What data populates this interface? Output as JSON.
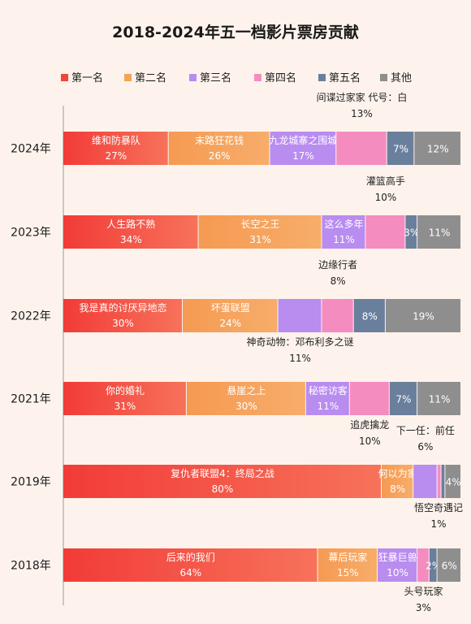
{
  "chart_data": {
    "type": "bar",
    "orientation": "horizontal-stacked-100",
    "title": "2018-2024年五一档影片票房贡献",
    "unit": "%",
    "legend": [
      {
        "name": "第一名",
        "color": "#f0463c"
      },
      {
        "name": "第二名",
        "color": "#f6a257"
      },
      {
        "name": "第三名",
        "color": "#b98cf0"
      },
      {
        "name": "第四名",
        "color": "#f48cc0"
      },
      {
        "name": "第五名",
        "color": "#6a7f9c"
      },
      {
        "name": "其他",
        "color": "#8e8e8e"
      }
    ],
    "legend_position": "top",
    "grid": false,
    "rows": [
      {
        "year": "2024年",
        "segments": [
          {
            "rank": "第一名",
            "film": "维和防暴队",
            "value": 27,
            "label": "27%"
          },
          {
            "rank": "第二名",
            "film": "末路狂花钱",
            "value": 26,
            "label": "26%"
          },
          {
            "rank": "第三名",
            "film": "九龙城寨之围城",
            "value": 17,
            "label": "17%"
          },
          {
            "rank": "第四名",
            "film": "间谍过家家 代号：白",
            "value": 13,
            "label": "13%"
          },
          {
            "rank": "第五名",
            "film": "",
            "value": 7,
            "label": "7%"
          },
          {
            "rank": "其他",
            "film": "",
            "value": 12,
            "label": "12%"
          }
        ]
      },
      {
        "year": "2023年",
        "segments": [
          {
            "rank": "第一名",
            "film": "人生路不熟",
            "value": 34,
            "label": "34%"
          },
          {
            "rank": "第二名",
            "film": "长空之王",
            "value": 31,
            "label": "31%"
          },
          {
            "rank": "第三名",
            "film": "这么多年",
            "value": 11,
            "label": "11%"
          },
          {
            "rank": "第四名",
            "film": "灌篮高手",
            "value": 10,
            "label": "10%"
          },
          {
            "rank": "第五名",
            "film": "",
            "value": 3,
            "label": "3%"
          },
          {
            "rank": "其他",
            "film": "",
            "value": 11,
            "label": "11%"
          }
        ]
      },
      {
        "year": "2022年",
        "segments": [
          {
            "rank": "第一名",
            "film": "我是真的讨厌异地恋",
            "value": 30,
            "label": "30%"
          },
          {
            "rank": "第二名",
            "film": "坏蛋联盟",
            "value": 24,
            "label": "24%"
          },
          {
            "rank": "第三名",
            "film": "神奇动物：邓布利多之谜",
            "value": 11,
            "label": "11%"
          },
          {
            "rank": "第四名",
            "film": "边缘行者",
            "value": 8,
            "label": "8%"
          },
          {
            "rank": "第五名",
            "film": "",
            "value": 8,
            "label": "8%"
          },
          {
            "rank": "其他",
            "film": "",
            "value": 19,
            "label": "19%"
          }
        ]
      },
      {
        "year": "2021年",
        "segments": [
          {
            "rank": "第一名",
            "film": "你的婚礼",
            "value": 31,
            "label": "31%"
          },
          {
            "rank": "第二名",
            "film": "悬崖之上",
            "value": 30,
            "label": "30%"
          },
          {
            "rank": "第三名",
            "film": "秘密访客",
            "value": 11,
            "label": "11%"
          },
          {
            "rank": "第四名",
            "film": "追虎擒龙",
            "value": 10,
            "label": "10%"
          },
          {
            "rank": "第五名",
            "film": "",
            "value": 7,
            "label": "7%"
          },
          {
            "rank": "其他",
            "film": "",
            "value": 11,
            "label": "11%"
          }
        ]
      },
      {
        "year": "2019年",
        "segments": [
          {
            "rank": "第一名",
            "film": "复仇者联盟4：终局之战",
            "value": 80,
            "label": "80%"
          },
          {
            "rank": "第二名",
            "film": "何以为家",
            "value": 8,
            "label": "8%"
          },
          {
            "rank": "第三名",
            "film": "下一任：前任",
            "value": 6,
            "label": "6%"
          },
          {
            "rank": "第四名",
            "film": "悟空奇遇记",
            "value": 1,
            "label": "1%"
          },
          {
            "rank": "第五名",
            "film": "",
            "value": 1,
            "label": ""
          },
          {
            "rank": "其他",
            "film": "",
            "value": 4,
            "label": "4%"
          }
        ]
      },
      {
        "year": "2018年",
        "segments": [
          {
            "rank": "第一名",
            "film": "后来的我们",
            "value": 64,
            "label": "64%"
          },
          {
            "rank": "第二名",
            "film": "幕后玩家",
            "value": 15,
            "label": "15%"
          },
          {
            "rank": "第三名",
            "film": "狂暴巨兽",
            "value": 10,
            "label": "10%"
          },
          {
            "rank": "第四名",
            "film": "头号玩家",
            "value": 3,
            "label": "3%"
          },
          {
            "rank": "第五名",
            "film": "",
            "value": 2,
            "label": "2%"
          },
          {
            "rank": "其他",
            "film": "",
            "value": 6,
            "label": "6%"
          }
        ]
      }
    ]
  }
}
